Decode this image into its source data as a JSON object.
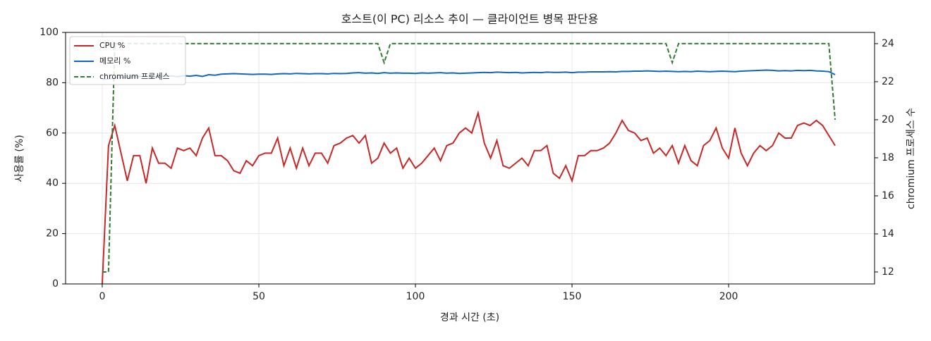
{
  "chart_data": {
    "type": "line",
    "title": "호스트(이 PC) 리소스 추이 — 클라이언트 병목 판단용",
    "x_label": "경과 시간 (초)",
    "y_label": "사용률 (%)",
    "y2_label": "chromium 프로세스 수",
    "x": [
      0,
      2,
      4,
      6,
      8,
      10,
      12,
      14,
      16,
      18,
      20,
      22,
      24,
      26,
      28,
      30,
      32,
      34,
      36,
      38,
      40,
      42,
      44,
      46,
      48,
      50,
      52,
      54,
      56,
      58,
      60,
      62,
      64,
      66,
      68,
      70,
      72,
      74,
      76,
      78,
      80,
      82,
      84,
      86,
      88,
      90,
      92,
      94,
      96,
      98,
      100,
      102,
      104,
      106,
      108,
      110,
      112,
      114,
      116,
      118,
      120,
      122,
      124,
      126,
      128,
      130,
      132,
      134,
      136,
      138,
      140,
      142,
      144,
      146,
      148,
      150,
      152,
      154,
      156,
      158,
      160,
      162,
      164,
      166,
      168,
      170,
      172,
      174,
      176,
      178,
      180,
      182,
      184,
      186,
      188,
      190,
      192,
      194,
      196,
      198,
      200,
      202,
      204,
      206,
      208,
      210,
      212,
      214,
      216,
      218,
      220,
      222,
      224,
      226,
      228,
      230,
      232,
      234
    ],
    "series": [
      {
        "name": "CPU %",
        "color": "#c62828",
        "dash": false,
        "values": [
          0,
          55,
          63,
          52,
          41,
          51,
          51,
          40,
          54,
          48,
          48,
          46,
          54,
          53,
          54,
          51,
          58,
          62,
          51,
          51,
          49,
          45,
          44,
          49,
          47,
          51,
          52,
          52,
          58,
          47,
          54,
          46,
          54,
          47,
          52,
          52,
          48,
          55,
          56,
          58,
          59,
          56,
          59,
          48,
          50,
          56,
          52,
          54,
          46,
          50,
          46,
          48,
          51,
          54,
          49,
          55,
          56,
          60,
          62,
          60,
          68,
          56,
          50,
          57,
          47,
          46,
          48,
          50,
          47,
          53,
          53,
          55,
          44,
          42,
          47,
          41,
          51,
          51,
          53,
          53,
          54,
          56,
          60,
          65,
          61,
          60,
          57,
          58,
          52,
          54,
          51,
          55,
          48,
          55,
          49,
          47,
          55,
          57,
          62,
          54,
          50,
          62,
          52,
          47,
          52,
          55,
          53,
          55,
          60,
          58,
          58,
          63,
          64,
          63,
          65,
          63,
          59,
          55
        ]
      },
      {
        "name": "메모리 %",
        "color": "#1565c0",
        "dash": false,
        "values": [
          81.3,
          81.5,
          81.8,
          82,
          82.2,
          82.3,
          82.4,
          82.5,
          82.4,
          82.6,
          82.5,
          82.7,
          82.4,
          82.8,
          82.6,
          82.9,
          82.5,
          83.2,
          83.0,
          83.4,
          83.5,
          83.6,
          83.5,
          83.4,
          83.3,
          83.4,
          83.4,
          83.3,
          83.5,
          83.6,
          83.5,
          83.7,
          83.6,
          83.5,
          83.6,
          83.6,
          83.5,
          83.7,
          83.6,
          83.7,
          83.9,
          84,
          83.8,
          83.9,
          83.7,
          84,
          83.8,
          83.9,
          83.8,
          83.8,
          83.7,
          83.9,
          83.8,
          83.9,
          84,
          83.8,
          83.9,
          83.7,
          83.8,
          83.9,
          84,
          84.1,
          84,
          84.2,
          84.1,
          84,
          84.1,
          83.9,
          84,
          84.1,
          84,
          84.2,
          84.1,
          84.1,
          84.2,
          84,
          84.2,
          84.2,
          84.3,
          84.3,
          84.3,
          84.4,
          84.3,
          84.5,
          84.5,
          84.6,
          84.6,
          84.7,
          84.6,
          84.5,
          84.6,
          84.5,
          84.4,
          84.5,
          84.4,
          84.6,
          84.5,
          84.4,
          84.5,
          84.6,
          84.5,
          84.4,
          84.6,
          84.7,
          84.8,
          84.9,
          85,
          84.9,
          84.7,
          84.8,
          84.7,
          84.9,
          84.8,
          84.9,
          84.7,
          84.6,
          84.4,
          83.2
        ]
      },
      {
        "name": "chromium 프로세스",
        "color": "#2e7d32",
        "dash": true,
        "axis": "y2",
        "values": [
          12,
          12,
          24,
          24,
          24,
          24,
          24,
          24,
          24,
          24,
          24,
          24,
          24,
          24,
          24,
          24,
          24,
          24,
          24,
          24,
          24,
          24,
          24,
          24,
          24,
          24,
          24,
          24,
          24,
          24,
          24,
          24,
          24,
          24,
          24,
          24,
          24,
          24,
          24,
          24,
          24,
          24,
          24,
          24,
          24,
          23,
          24,
          24,
          24,
          24,
          24,
          24,
          24,
          24,
          24,
          24,
          24,
          24,
          24,
          24,
          24,
          24,
          24,
          24,
          24,
          24,
          24,
          24,
          24,
          24,
          24,
          24,
          24,
          24,
          24,
          24,
          24,
          24,
          24,
          24,
          24,
          24,
          24,
          24,
          24,
          24,
          24,
          24,
          24,
          24,
          24,
          23,
          24,
          24,
          24,
          24,
          24,
          24,
          24,
          24,
          24,
          24,
          24,
          24,
          24,
          24,
          24,
          24,
          24,
          24,
          24,
          24,
          24,
          24,
          24,
          24,
          24,
          20
        ]
      }
    ],
    "xlim": [
      -11.7,
      246.6
    ],
    "xticks": [
      0,
      50,
      100,
      150,
      200
    ],
    "ylim": [
      0,
      100
    ],
    "yticks": [
      0,
      20,
      40,
      60,
      80,
      100
    ],
    "y2lim": [
      11.37,
      24.59
    ],
    "y2ticks": [
      12,
      14,
      16,
      18,
      20,
      22,
      24
    ],
    "grid": true,
    "legend": "upper left"
  }
}
